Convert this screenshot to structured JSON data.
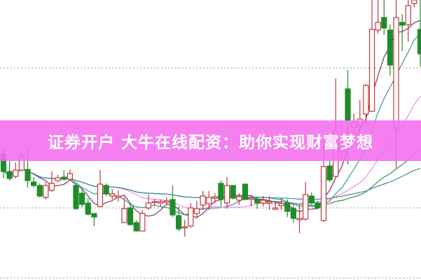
{
  "banner": {
    "text": "证券开户 大牛在线配资：助你实现财富梦想",
    "color": "#f46ef0"
  },
  "chart_data": {
    "type": "candlestick",
    "title": "",
    "xlabel": "",
    "ylabel": "",
    "ylim": [
      0,
      40
    ],
    "grid": "horizontal dotted",
    "up_color": "#c0393b",
    "down_color": "#1e8c2a",
    "ohlc": [
      [
        18.0,
        19.0,
        14.5,
        15.5
      ],
      [
        15.5,
        17.0,
        14.2,
        14.5
      ],
      [
        14.8,
        16.8,
        14.5,
        15.7
      ],
      [
        15.7,
        18.5,
        15.5,
        17.7
      ],
      [
        15.8,
        19.0,
        13.2,
        14.2
      ],
      [
        14.0,
        14.7,
        13.2,
        13.5
      ],
      [
        13.5,
        13.8,
        11.8,
        12.0
      ],
      [
        11.8,
        14.0,
        11.5,
        13.5
      ],
      [
        12.8,
        15.5,
        12.6,
        13.8
      ],
      [
        14.2,
        15.0,
        14.0,
        14.6
      ],
      [
        14.7,
        15.7,
        14.2,
        14.4
      ],
      [
        14.4,
        15.8,
        14.2,
        15.2
      ],
      [
        13.5,
        13.8,
        10.0,
        10.2
      ],
      [
        12.4,
        13.0,
        10.4,
        10.8
      ],
      [
        11.0,
        11.7,
        9.2,
        9.4
      ],
      [
        9.5,
        9.5,
        7.7,
        9.0
      ],
      [
        10.5,
        15.7,
        10.4,
        13.7
      ],
      [
        13.5,
        13.8,
        12.0,
        12.3
      ],
      [
        12.0,
        13.0,
        11.5,
        12.3
      ],
      [
        11.8,
        12.8,
        11.2,
        12.0
      ],
      [
        8.2,
        11.8,
        8.2,
        10.2
      ],
      [
        10.3,
        11.0,
        7.8,
        7.9
      ],
      [
        8.2,
        8.5,
        7.0,
        7.0
      ],
      [
        7.0,
        10.0,
        7.0,
        9.5
      ],
      [
        10.3,
        12.2,
        10.0,
        11.0
      ],
      [
        11.1,
        11.6,
        10.6,
        11.2
      ],
      [
        11.0,
        11.5,
        10.5,
        11.2
      ],
      [
        11.1,
        11.8,
        10.7,
        11.3
      ],
      [
        11.5,
        13.5,
        9.0,
        9.3
      ],
      [
        9.2,
        10.5,
        7.0,
        7.3
      ],
      [
        7.5,
        8.6,
        6.2,
        7.6
      ],
      [
        7.7,
        11.0,
        7.5,
        10.3
      ],
      [
        9.5,
        11.3,
        8.8,
        10.2
      ],
      [
        10.7,
        12.7,
        10.0,
        12.0
      ],
      [
        10.9,
        12.7,
        10.0,
        11.8
      ],
      [
        11.7,
        12.4,
        11.0,
        11.9
      ],
      [
        13.8,
        14.2,
        10.5,
        11.5
      ],
      [
        11.0,
        14.7,
        10.2,
        13.5
      ],
      [
        13.5,
        13.5,
        11.5,
        11.7
      ],
      [
        11.4,
        12.4,
        10.7,
        11.9
      ],
      [
        13.7,
        13.7,
        11.5,
        11.5
      ],
      [
        11.5,
        12.0,
        10.5,
        11.7
      ],
      [
        11.5,
        11.8,
        10.2,
        11.0
      ],
      [
        11.0,
        12.0,
        10.5,
        11.4
      ],
      [
        11.0,
        12.0,
        10.0,
        11.2
      ],
      [
        10.1,
        11.2,
        10.0,
        10.3
      ],
      [
        10.6,
        11.7,
        10.0,
        10.9
      ],
      [
        11.0,
        11.5,
        9.0,
        9.8
      ],
      [
        10.2,
        10.8,
        8.2,
        8.8
      ],
      [
        8.6,
        10.7,
        6.7,
        8.8
      ],
      [
        8.7,
        14.0,
        8.5,
        12.2
      ],
      [
        12.0,
        12.5,
        10.8,
        11.0
      ],
      [
        11.0,
        11.3,
        10.1,
        10.3
      ],
      [
        8.5,
        20.0,
        8.3,
        16.2
      ],
      [
        16.3,
        17.3,
        14.0,
        14.3
      ],
      [
        14.8,
        28.8,
        14.8,
        21.3
      ],
      [
        18.3,
        22.7,
        17.2,
        18.8
      ],
      [
        27.3,
        30.0,
        16.5,
        22.8
      ],
      [
        21.8,
        23.8,
        20.0,
        22.5
      ],
      [
        22.0,
        25.7,
        21.0,
        23.0
      ],
      [
        23.7,
        28.0,
        22.0,
        27.8
      ],
      [
        24.1,
        40.0,
        24.0,
        35.8
      ],
      [
        35.7,
        40.0,
        35.2,
        36.8
      ],
      [
        37.5,
        40.0,
        35.0,
        36.0
      ],
      [
        35.7,
        36.5,
        29.2,
        30.7
      ],
      [
        21.7,
        40.0,
        16.0,
        37.5
      ],
      [
        36.8,
        38.0,
        32.7,
        36.4
      ],
      [
        36.5,
        40.0,
        34.0,
        39.2
      ],
      [
        39.5,
        40.0,
        39.0,
        40.0
      ],
      [
        35.8,
        40.0,
        30.5,
        32.3
      ]
    ],
    "moving_average_colors": [
      "#7a3468",
      "#3a9aa0",
      "#e98ee6",
      "#3f8a45",
      "#3f8ba3"
    ]
  }
}
